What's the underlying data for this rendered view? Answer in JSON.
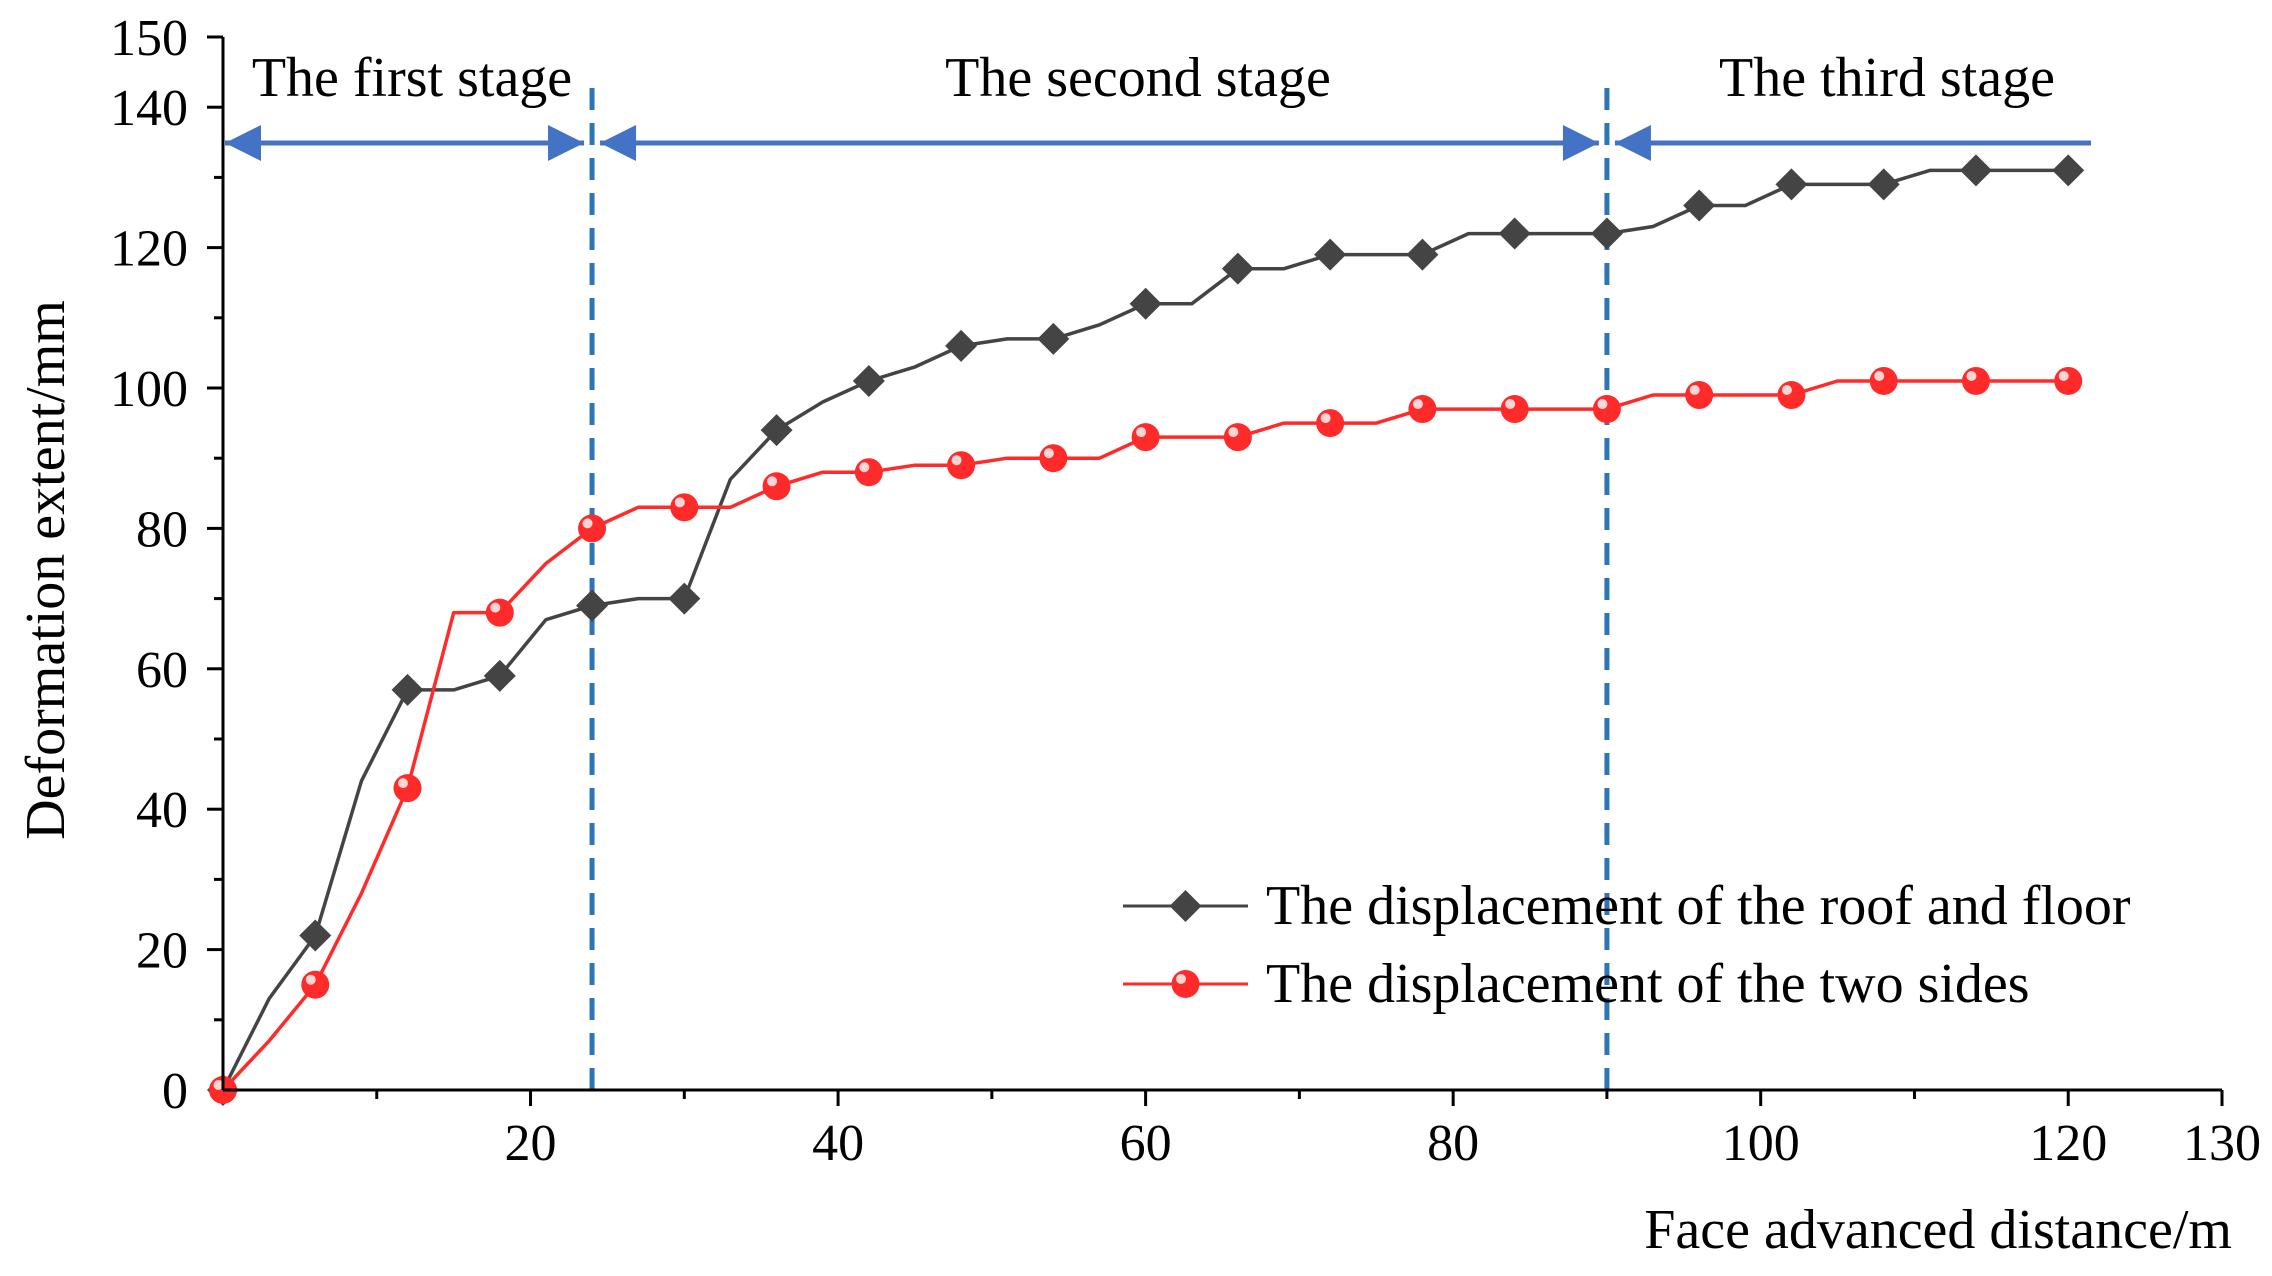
{
  "chart_data": {
    "type": "line",
    "xlabel": "Face advanced distance/m",
    "ylabel": "Deformation extent/mm",
    "xlim": [
      0,
      130
    ],
    "ylim": [
      0,
      150
    ],
    "x_ticks": [
      20,
      40,
      60,
      80,
      100,
      120,
      130
    ],
    "y_ticks": [
      0,
      20,
      40,
      60,
      80,
      100,
      120,
      140,
      150
    ],
    "grid": false,
    "legend_position": "bottom-right",
    "stages": [
      {
        "label": "The first stage",
        "x_start": 0,
        "x_end": 24
      },
      {
        "label": "The second stage",
        "x_start": 24,
        "x_end": 90
      },
      {
        "label": "The third stage",
        "x_start": 90,
        "x_end": 122
      }
    ],
    "stage_boundaries": [
      24,
      90
    ],
    "series": [
      {
        "name": "The displacement of the roof and floor",
        "color": "#444444",
        "marker": "diamond",
        "line": [
          [
            0,
            0
          ],
          [
            3,
            13
          ],
          [
            6,
            22
          ],
          [
            9,
            44
          ],
          [
            12,
            57
          ],
          [
            15,
            57
          ],
          [
            18,
            59
          ],
          [
            21,
            67
          ],
          [
            24,
            69
          ],
          [
            27,
            70
          ],
          [
            30,
            70
          ],
          [
            33,
            87
          ],
          [
            36,
            94
          ],
          [
            39,
            98
          ],
          [
            42,
            101
          ],
          [
            45,
            103
          ],
          [
            48,
            106
          ],
          [
            51,
            107
          ],
          [
            54,
            107
          ],
          [
            57,
            109
          ],
          [
            60,
            112
          ],
          [
            63,
            112
          ],
          [
            66,
            117
          ],
          [
            69,
            117
          ],
          [
            72,
            119
          ],
          [
            75,
            119
          ],
          [
            78,
            119
          ],
          [
            81,
            122
          ],
          [
            84,
            122
          ],
          [
            87,
            122
          ],
          [
            90,
            122
          ],
          [
            93,
            123
          ],
          [
            96,
            126
          ],
          [
            99,
            126
          ],
          [
            102,
            129
          ],
          [
            105,
            129
          ],
          [
            108,
            129
          ],
          [
            111,
            131
          ],
          [
            114,
            131
          ],
          [
            117,
            131
          ],
          [
            120,
            131
          ]
        ],
        "markers": [
          [
            0,
            0
          ],
          [
            6,
            22
          ],
          [
            12,
            57
          ],
          [
            18,
            59
          ],
          [
            24,
            69
          ],
          [
            30,
            70
          ],
          [
            36,
            94
          ],
          [
            42,
            101
          ],
          [
            48,
            106
          ],
          [
            54,
            107
          ],
          [
            60,
            112
          ],
          [
            66,
            117
          ],
          [
            72,
            119
          ],
          [
            78,
            119
          ],
          [
            84,
            122
          ],
          [
            90,
            122
          ],
          [
            96,
            126
          ],
          [
            102,
            129
          ],
          [
            108,
            129
          ],
          [
            114,
            131
          ],
          [
            120,
            131
          ]
        ]
      },
      {
        "name": "The displacement of the two sides",
        "color": "#ff2a2a",
        "marker": "circle",
        "line": [
          [
            0,
            0
          ],
          [
            3,
            7
          ],
          [
            6,
            15
          ],
          [
            9,
            28
          ],
          [
            12,
            43
          ],
          [
            15,
            68
          ],
          [
            18,
            68
          ],
          [
            21,
            75
          ],
          [
            24,
            80
          ],
          [
            27,
            83
          ],
          [
            30,
            83
          ],
          [
            33,
            83
          ],
          [
            36,
            86
          ],
          [
            39,
            88
          ],
          [
            42,
            88
          ],
          [
            45,
            89
          ],
          [
            48,
            89
          ],
          [
            51,
            90
          ],
          [
            54,
            90
          ],
          [
            57,
            90
          ],
          [
            60,
            93
          ],
          [
            63,
            93
          ],
          [
            66,
            93
          ],
          [
            69,
            95
          ],
          [
            72,
            95
          ],
          [
            75,
            95
          ],
          [
            78,
            97
          ],
          [
            81,
            97
          ],
          [
            84,
            97
          ],
          [
            87,
            97
          ],
          [
            90,
            97
          ],
          [
            93,
            99
          ],
          [
            96,
            99
          ],
          [
            99,
            99
          ],
          [
            102,
            99
          ],
          [
            105,
            101
          ],
          [
            108,
            101
          ],
          [
            111,
            101
          ],
          [
            114,
            101
          ],
          [
            117,
            101
          ],
          [
            120,
            101
          ]
        ],
        "markers": [
          [
            0,
            0
          ],
          [
            6,
            15
          ],
          [
            12,
            43
          ],
          [
            18,
            68
          ],
          [
            24,
            80
          ],
          [
            30,
            83
          ],
          [
            36,
            86
          ],
          [
            42,
            88
          ],
          [
            48,
            89
          ],
          [
            54,
            90
          ],
          [
            60,
            93
          ],
          [
            66,
            93
          ],
          [
            72,
            95
          ],
          [
            78,
            97
          ],
          [
            84,
            97
          ],
          [
            90,
            97
          ],
          [
            96,
            99
          ],
          [
            102,
            99
          ],
          [
            108,
            101
          ],
          [
            114,
            101
          ],
          [
            120,
            101
          ]
        ]
      }
    ]
  },
  "colors": {
    "axis": "#000000",
    "stage_arrow": "#4472c4",
    "boundary": "#2e75b6"
  }
}
